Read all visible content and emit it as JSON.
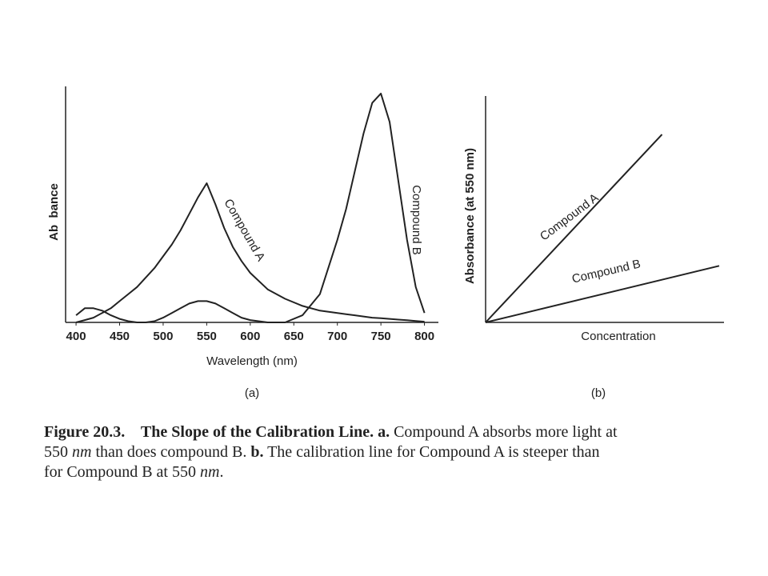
{
  "chart_data": [
    {
      "type": "line",
      "x_label": "Wavelength (nm)",
      "y_label": "Ab  bance",
      "sublabel": "(a)",
      "x": [
        400,
        410,
        420,
        430,
        440,
        450,
        460,
        470,
        480,
        490,
        500,
        510,
        520,
        530,
        540,
        550,
        560,
        570,
        580,
        590,
        600,
        620,
        640,
        660,
        680,
        700,
        710,
        720,
        730,
        740,
        750,
        760,
        770,
        780,
        790,
        800
      ],
      "series": [
        {
          "name": "Compound A",
          "color": "#222222",
          "values": [
            0.0,
            0.01,
            0.02,
            0.04,
            0.06,
            0.09,
            0.12,
            0.15,
            0.19,
            0.23,
            0.28,
            0.33,
            0.39,
            0.46,
            0.53,
            0.59,
            0.5,
            0.4,
            0.32,
            0.26,
            0.21,
            0.14,
            0.1,
            0.07,
            0.05,
            0.04,
            0.035,
            0.03,
            0.025,
            0.02,
            0.018,
            0.015,
            0.012,
            0.009,
            0.006,
            0.003
          ]
        },
        {
          "name": "Compound B",
          "color": "#222222",
          "values": [
            0.03,
            0.06,
            0.06,
            0.05,
            0.03,
            0.015,
            0.005,
            0.0,
            0.0,
            0.005,
            0.02,
            0.04,
            0.06,
            0.08,
            0.09,
            0.09,
            0.08,
            0.06,
            0.04,
            0.02,
            0.01,
            0.0,
            0.0,
            0.03,
            0.12,
            0.35,
            0.48,
            0.64,
            0.8,
            0.93,
            0.97,
            0.85,
            0.6,
            0.35,
            0.15,
            0.04
          ]
        }
      ],
      "xlim": [
        388,
        816
      ],
      "xticks": [
        400,
        450,
        500,
        550,
        600,
        650,
        700,
        750,
        800
      ],
      "ylim": [
        0,
        1
      ]
    },
    {
      "type": "line",
      "x_label": "Concentration",
      "y_label": "Absorbance (at 550 nm)",
      "sublabel": "(b)",
      "series": [
        {
          "name": "Compound A",
          "color": "#222222",
          "x": [
            0,
            0.74
          ],
          "values": [
            0,
            0.83
          ]
        },
        {
          "name": "Compound B",
          "color": "#222222",
          "x": [
            0,
            0.98
          ],
          "values": [
            0,
            0.25
          ]
        }
      ],
      "xlim": [
        0,
        1
      ],
      "ylim": [
        0,
        1
      ]
    }
  ],
  "caption": [
    [
      {
        "text": "Figure 20.3.",
        "style": "bold"
      },
      {
        "text": "    The Slope of the Calibration Line. a.",
        "style": "bold"
      },
      {
        "text": " Compound A absorbs more light at",
        "style": "normal"
      }
    ],
    [
      {
        "text": "550 ",
        "style": "normal"
      },
      {
        "text": "nm",
        "style": "italic"
      },
      {
        "text": " than does compound B. ",
        "style": "normal"
      },
      {
        "text": "b.",
        "style": "bold"
      },
      {
        "text": " The calibration line for Compound A is steeper than",
        "style": "normal"
      }
    ],
    [
      {
        "text": "for Compound B at 550 ",
        "style": "normal"
      },
      {
        "text": "nm",
        "style": "italic"
      },
      {
        "text": ".",
        "style": "normal"
      }
    ]
  ]
}
